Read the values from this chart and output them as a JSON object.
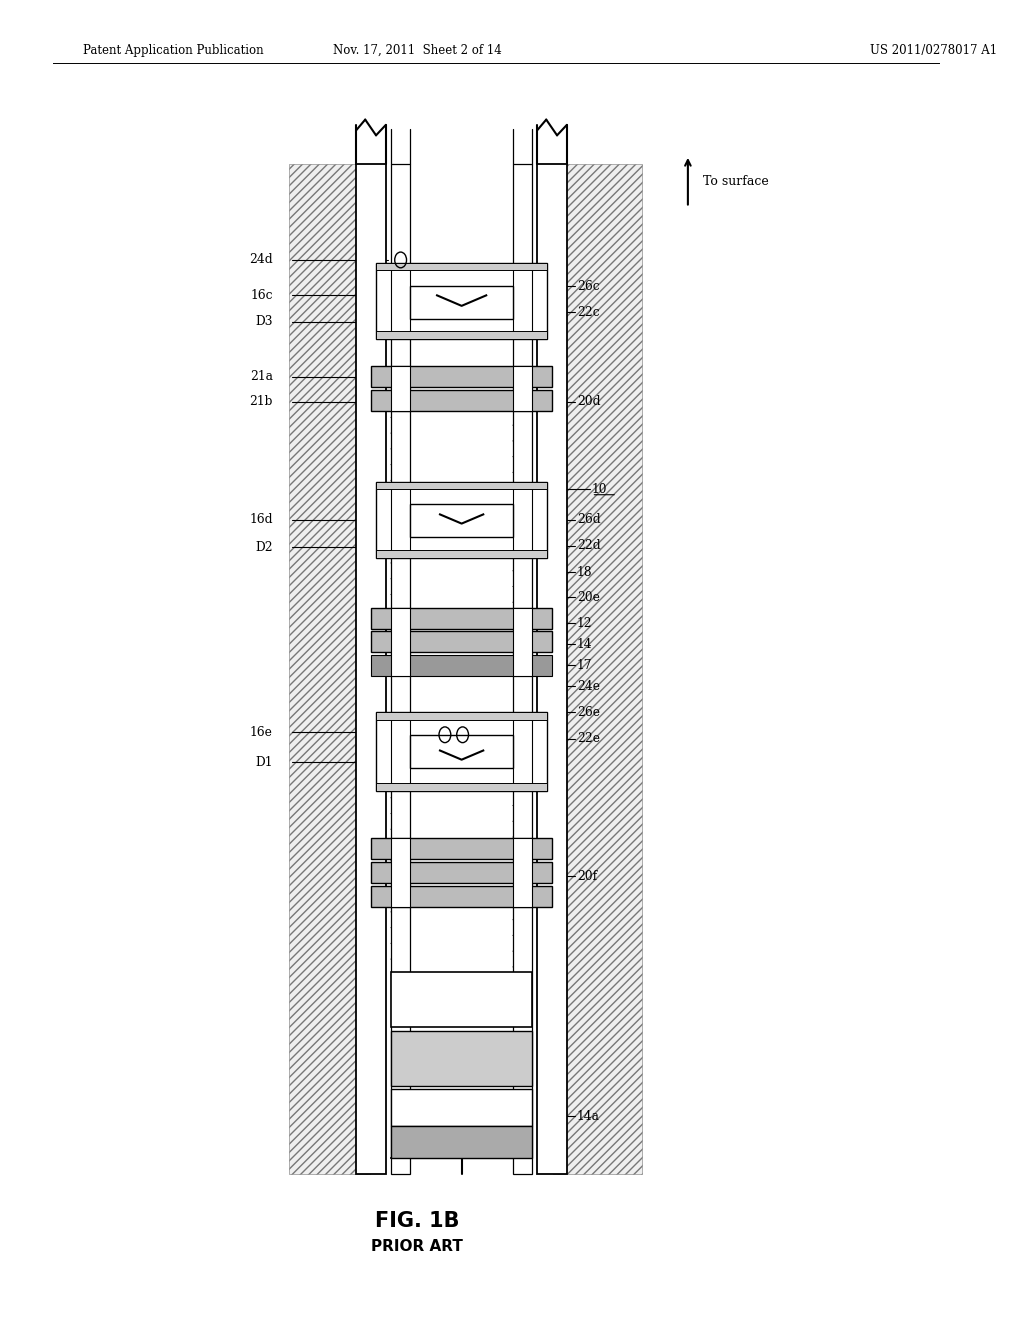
{
  "bg_color": "#ffffff",
  "line_color": "#000000",
  "header_left": "Patent Application Publication",
  "header_mid": "Nov. 17, 2011  Sheet 2 of 14",
  "header_right": "US 2011/0278017 A1",
  "figure_label": "FIG. 1B",
  "figure_sublabel": "PRIOR ART",
  "to_surface_label": "To surface"
}
